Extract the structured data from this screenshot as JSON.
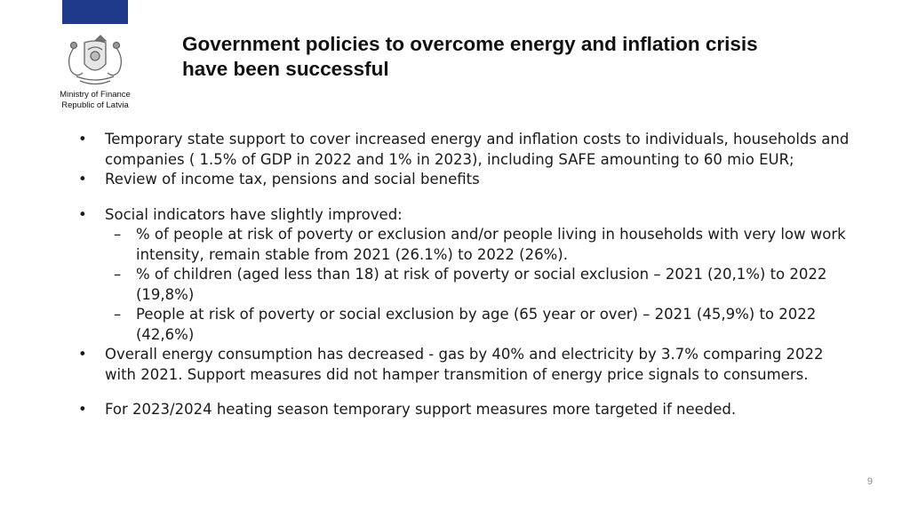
{
  "brand": {
    "org_line1": "Ministry of Finance",
    "org_line2": "Republic of Latvia",
    "accent_color": "#1f3a8a"
  },
  "slide": {
    "title_line1": "Government policies to overcome energy and inflation crisis",
    "title_line2": "have been successful",
    "page_number": "9"
  },
  "bullets": [
    "Temporary state support to cover increased energy and inflation costs to individuals, households and companies ( 1.5% of GDP in 2022 and 1% in 2023), including SAFE amounting to 60 mio EUR;",
    "Review of income tax, pensions and social benefits",
    "Social indicators have slightly improved:",
    "Overall energy consumption has decreased - gas by 40%  and electricity by 3.7% comparing 2022 with 2021. Support measures did not hamper transmition of energy price signals to consumers.",
    "For 2023/2024 heating season temporary support measures more targeted if needed."
  ],
  "sub_bullets": [
    "% of people at risk of poverty or exclusion and/or people living in households with very low work intensity, remain stable from 2021 (26.1%)  to 2022 (26%).",
    "% of children (aged less than 18) at risk of poverty or social exclusion – 2021 (20,1%) to 2022 (19,8%)",
    "People at risk of poverty or social exclusion by age (65 year or over) – 2021 (45,9%) to 2022 (42,6%)"
  ],
  "markers": {
    "bullet": "•",
    "dash": "–"
  }
}
